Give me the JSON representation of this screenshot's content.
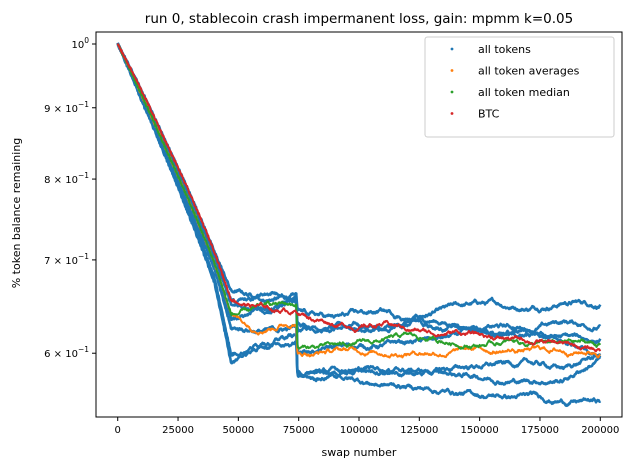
{
  "chart_data": {
    "type": "scatter",
    "title": "run 0, stablecoin crash impermanent loss, gain: mpmm k=0.05",
    "xlabel": "swap number",
    "ylabel": "% token balance remaining",
    "yscale": "log",
    "xlim": [
      -9000,
      209000
    ],
    "ylim": [
      0.54,
      1.02
    ],
    "xticks": [
      0,
      25000,
      50000,
      75000,
      100000,
      125000,
      150000,
      175000,
      200000
    ],
    "xtick_labels": [
      "0",
      "25000",
      "50000",
      "75000",
      "100000",
      "125000",
      "150000",
      "175000",
      "200000"
    ],
    "yticks": [
      1.0,
      0.9,
      0.8,
      0.7,
      0.6
    ],
    "ytick_bases": [
      "10",
      "9 × 10",
      "8 × 10",
      "7 × 10",
      "6 × 10"
    ],
    "ytick_exponents": [
      "0",
      "−1",
      "−1",
      "−1",
      "−1"
    ],
    "legend_position": "top-right",
    "series": [
      {
        "name": "all tokens",
        "color": "#1f77b4",
        "lines": [
          {
            "x": [
              0,
              10000,
              20000,
              30000,
              40000,
              47000,
              55000,
              65000,
              74000,
              74500,
              90000,
              110000,
              130000,
              150000,
              170000,
              185000,
              200000
            ],
            "y": [
              1.0,
              0.92,
              0.84,
              0.77,
              0.7,
              0.655,
              0.652,
              0.656,
              0.657,
              0.62,
              0.63,
              0.625,
              0.64,
              0.65,
              0.648,
              0.655,
              0.652
            ]
          },
          {
            "x": [
              0,
              10000,
              20000,
              30000,
              40000,
              47000,
              55000,
              65000,
              74000,
              74500,
              90000,
              110000,
              130000,
              150000,
              170000,
              185000,
              200000
            ],
            "y": [
              1.0,
              0.925,
              0.85,
              0.78,
              0.71,
              0.665,
              0.66,
              0.666,
              0.65,
              0.632,
              0.628,
              0.622,
              0.632,
              0.628,
              0.625,
              0.632,
              0.628
            ]
          },
          {
            "x": [
              0,
              10000,
              20000,
              30000,
              40000,
              47000,
              55000,
              65000,
              74000,
              74500,
              90000,
              110000,
              130000,
              150000,
              170000,
              185000,
              200000
            ],
            "y": [
              1.0,
              0.918,
              0.838,
              0.765,
              0.695,
              0.635,
              0.64,
              0.648,
              0.652,
              0.6,
              0.605,
              0.608,
              0.612,
              0.62,
              0.615,
              0.615,
              0.612
            ]
          },
          {
            "x": [
              0,
              10000,
              20000,
              30000,
              40000,
              47000,
              55000,
              65000,
              74000,
              74500,
              90000,
              110000,
              130000,
              150000,
              170000,
              185000,
              200000
            ],
            "y": [
              1.0,
              0.915,
              0.835,
              0.76,
              0.69,
              0.625,
              0.625,
              0.622,
              0.626,
              0.578,
              0.58,
              0.585,
              0.582,
              0.588,
              0.59,
              0.585,
              0.598
            ]
          },
          {
            "x": [
              0,
              10000,
              20000,
              30000,
              40000,
              47000,
              55000,
              65000,
              74000,
              74500,
              90000,
              110000,
              130000,
              150000,
              170000,
              185000,
              200000
            ],
            "y": [
              1.0,
              0.912,
              0.83,
              0.755,
              0.68,
              0.598,
              0.608,
              0.615,
              0.62,
              0.58,
              0.582,
              0.585,
              0.58,
              0.578,
              0.574,
              0.575,
              0.595
            ]
          },
          {
            "x": [
              0,
              10000,
              20000,
              30000,
              40000,
              47000,
              55000,
              65000,
              74000,
              74500,
              90000,
              110000,
              130000,
              150000,
              170000,
              185000,
              200000
            ],
            "y": [
              1.0,
              0.91,
              0.828,
              0.75,
              0.675,
              0.59,
              0.603,
              0.61,
              0.612,
              0.58,
              0.576,
              0.57,
              0.566,
              0.56,
              0.558,
              0.555,
              0.554
            ]
          },
          {
            "x": [
              0,
              10000,
              20000,
              30000,
              40000,
              47000,
              55000,
              65000,
              74000,
              74500,
              90000,
              110000,
              130000,
              150000,
              170000,
              185000,
              200000
            ],
            "y": [
              1.0,
              0.922,
              0.845,
              0.772,
              0.705,
              0.65,
              0.645,
              0.648,
              0.655,
              0.64,
              0.635,
              0.642,
              0.63,
              0.625,
              0.618,
              0.61,
              0.602
            ]
          }
        ]
      },
      {
        "name": "all token averages",
        "color": "#ff7f0e",
        "lines": [
          {
            "x": [
              0,
              10000,
              20000,
              30000,
              40000,
              47000,
              55000,
              65000,
              74000,
              74500,
              100000,
              130000,
              160000,
              200000
            ],
            "y": [
              1.0,
              0.918,
              0.84,
              0.768,
              0.697,
              0.64,
              0.628,
              0.632,
              0.634,
              0.602,
              0.603,
              0.603,
              0.603,
              0.603
            ]
          }
        ]
      },
      {
        "name": "all token median",
        "color": "#2ca02c",
        "lines": [
          {
            "x": [
              0,
              10000,
              20000,
              30000,
              40000,
              47000,
              55000,
              65000,
              74000,
              74500,
              90000,
              105000,
              120000,
              135000,
              150000,
              165000,
              180000,
              190000,
              200000
            ],
            "y": [
              1.0,
              0.918,
              0.84,
              0.768,
              0.697,
              0.64,
              0.642,
              0.648,
              0.65,
              0.605,
              0.606,
              0.61,
              0.615,
              0.612,
              0.61,
              0.612,
              0.608,
              0.61,
              0.608
            ]
          }
        ]
      },
      {
        "name": "BTC",
        "color": "#d62728",
        "lines": [
          {
            "x": [
              0,
              10000,
              20000,
              30000,
              40000,
              47000,
              55000,
              65000,
              74000,
              80000,
              90000,
              100000,
              110000,
              120000,
              130000,
              140000,
              150000,
              160000,
              175000,
              190000,
              200000
            ],
            "y": [
              1.0,
              0.925,
              0.85,
              0.78,
              0.71,
              0.655,
              0.65,
              0.645,
              0.645,
              0.638,
              0.632,
              0.628,
              0.63,
              0.625,
              0.62,
              0.622,
              0.618,
              0.615,
              0.612,
              0.605,
              0.603
            ]
          }
        ]
      }
    ]
  }
}
